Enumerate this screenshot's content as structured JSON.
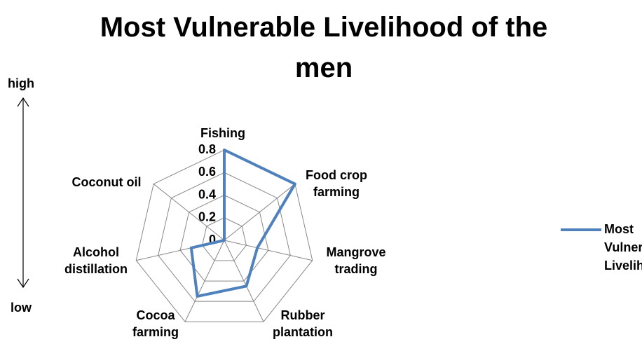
{
  "chart_data": {
    "type": "radar",
    "title": "Most Vulnerable Livelihood of the men",
    "categories": [
      "Fishing",
      "Food crop farming",
      "Mangrove trading",
      "Rubber plantation",
      "Cocoa farming",
      "Alcohol distillation",
      "Coconut oil"
    ],
    "series": [
      {
        "name": "Most Vulnerable Livelihood",
        "color": "#4f81bd",
        "values": [
          0.8,
          0.8,
          0.3,
          0.45,
          0.55,
          0.3,
          0
        ]
      }
    ],
    "rlim": [
      0,
      0.8
    ],
    "rticks": [
      0,
      0.2,
      0.4,
      0.6,
      0.8
    ],
    "grid": true,
    "legend": "right",
    "annotations": [
      "high",
      "low"
    ]
  }
}
